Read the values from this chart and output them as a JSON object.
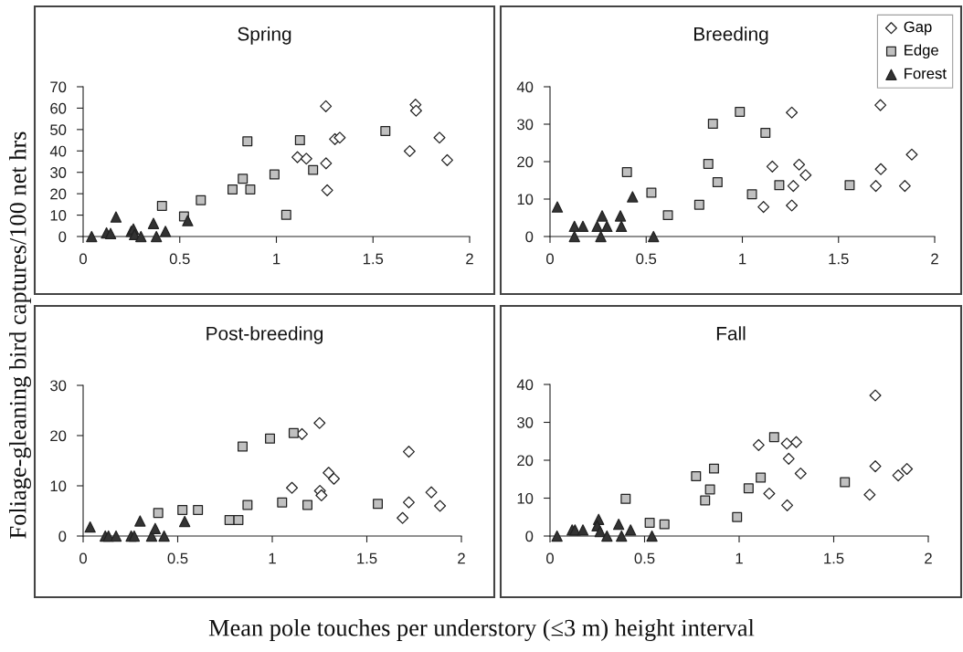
{
  "chart_data": [
    {
      "type": "scatter",
      "title": "Spring",
      "ylabel": "Foliage-gleaning bird captures/100 net hrs",
      "xlabel": "Mean pole touches per understory (≤3 m) height interval",
      "xlim": [
        0,
        2
      ],
      "xticks": [
        0,
        0.5,
        1,
        1.5,
        2
      ],
      "ylim": [
        0,
        70
      ],
      "yticks": [
        0,
        10,
        20,
        30,
        40,
        50,
        60,
        70
      ],
      "grid": false,
      "series": [
        {
          "color": "#ffffff",
          "marker": "diamond",
          "x": [
            1.256,
            1.72,
            1.723,
            1.303,
            1.328,
            1.109,
            1.155,
            1.257,
            1.263,
            1.69,
            1.844,
            1.884
          ],
          "values": [
            60.9,
            61.6,
            58.8,
            45.5,
            46.2,
            37.1,
            36.4,
            34.2,
            21.6,
            39.9,
            46.2,
            35.7
          ]
        },
        {
          "color": "#c0c0c0",
          "marker": "square",
          "x": [
            0.408,
            0.522,
            0.609,
            0.773,
            0.826,
            0.85,
            0.865,
            0.99,
            1.122,
            1.051,
            1.19,
            1.564
          ],
          "values": [
            14.3,
            9.4,
            17.0,
            22.0,
            27.0,
            44.5,
            22.0,
            29.0,
            45.0,
            10.1,
            31.1,
            49.3
          ]
        },
        {
          "color": "#333333",
          "marker": "triangle",
          "x": [
            0.044,
            0.121,
            0.142,
            0.17,
            0.249,
            0.26,
            0.266,
            0.299,
            0.364,
            0.379,
            0.426,
            0.541
          ],
          "values": [
            0,
            1.7,
            1.4,
            9.1,
            2.4,
            3.5,
            0.9,
            0,
            6.1,
            0,
            2.4,
            7.4
          ]
        }
      ]
    },
    {
      "type": "scatter",
      "title": "Breeding",
      "xlim": [
        0,
        2
      ],
      "xticks": [
        0,
        0.5,
        1,
        1.5,
        2
      ],
      "ylim": [
        0,
        40
      ],
      "yticks": [
        0,
        10,
        20,
        30,
        40
      ],
      "grid": false,
      "legend": "top right",
      "series": [
        {
          "name": "Gap",
          "color": "#ffffff",
          "marker": "diamond",
          "x": [
            1.257,
            1.718,
            1.156,
            1.295,
            1.329,
            1.265,
            1.11,
            1.257,
            1.72,
            1.694,
            1.845,
            1.881
          ],
          "values": [
            33.1,
            35.1,
            18.7,
            19.2,
            16.4,
            13.5,
            7.9,
            8.3,
            18.0,
            13.5,
            13.5,
            21.9
          ]
        },
        {
          "name": "Edge",
          "color": "#c0c0c0",
          "marker": "square",
          "x": [
            0.4,
            0.527,
            0.613,
            0.776,
            0.823,
            0.847,
            0.871,
            0.987,
            1.12,
            1.05,
            1.192,
            1.558
          ],
          "values": [
            17.2,
            11.7,
            5.7,
            8.5,
            19.4,
            30.1,
            14.5,
            33.3,
            27.7,
            11.3,
            13.7,
            13.7
          ]
        },
        {
          "name": "Forest",
          "color": "#333333",
          "marker": "triangle",
          "x": [
            0.038,
            0.127,
            0.127,
            0.171,
            0.245,
            0.271,
            0.264,
            0.296,
            0.366,
            0.371,
            0.429,
            0.538
          ],
          "values": [
            7.9,
            2.7,
            0,
            2.7,
            2.7,
            5.5,
            0,
            2.7,
            5.5,
            2.7,
            10.6,
            0
          ]
        }
      ]
    },
    {
      "type": "scatter",
      "title": "Post-breeding",
      "xlim": [
        0,
        2
      ],
      "xticks": [
        0,
        0.5,
        1,
        1.5,
        2
      ],
      "ylim": [
        0,
        30
      ],
      "yticks": [
        0,
        10,
        20,
        30
      ],
      "grid": false,
      "series": [
        {
          "color": "#ffffff",
          "marker": "diamond",
          "x": [
            1.25,
            1.157,
            1.722,
            1.298,
            1.326,
            1.104,
            1.252,
            1.26,
            1.841,
            1.722,
            1.887,
            1.689
          ],
          "values": [
            22.5,
            20.3,
            16.8,
            12.6,
            11.4,
            9.6,
            9.0,
            8.1,
            8.7,
            6.7,
            6.0,
            3.6
          ]
        },
        {
          "color": "#c0c0c0",
          "marker": "square",
          "x": [
            0.397,
            0.525,
            0.607,
            0.774,
            0.821,
            0.843,
            0.869,
            0.988,
            1.113,
            1.052,
            1.186,
            1.558
          ],
          "values": [
            4.6,
            5.2,
            5.2,
            3.2,
            3.2,
            17.8,
            6.2,
            19.4,
            20.5,
            6.7,
            6.2,
            6.4
          ]
        },
        {
          "color": "#333333",
          "marker": "triangle",
          "x": [
            0.037,
            0.117,
            0.134,
            0.174,
            0.254,
            0.27,
            0.301,
            0.362,
            0.381,
            0.428,
            0.537
          ],
          "values": [
            1.8,
            0,
            0,
            0,
            0,
            0,
            3.0,
            0,
            1.5,
            0,
            2.9
          ]
        }
      ]
    },
    {
      "type": "scatter",
      "title": "Fall",
      "xlim": [
        0,
        2
      ],
      "xticks": [
        0,
        0.5,
        1,
        1.5,
        2
      ],
      "ylim": [
        0,
        40
      ],
      "yticks": [
        0,
        10,
        20,
        30,
        40
      ],
      "grid": false,
      "series": [
        {
          "color": "#ffffff",
          "marker": "diamond",
          "x": [
            1.72,
            1.103,
            1.252,
            1.302,
            1.262,
            1.325,
            1.159,
            1.254,
            1.72,
            1.841,
            1.887,
            1.69
          ],
          "values": [
            37.1,
            24.0,
            24.4,
            24.8,
            20.4,
            16.5,
            11.2,
            8.1,
            18.4,
            16.0,
            17.7,
            10.9
          ]
        },
        {
          "color": "#c0c0c0",
          "marker": "square",
          "x": [
            0.4,
            0.527,
            0.605,
            0.772,
            0.82,
            0.846,
            0.867,
            0.989,
            1.05,
            1.114,
            1.185,
            1.559
          ],
          "values": [
            9.8,
            3.5,
            3.1,
            15.8,
            9.4,
            12.3,
            17.8,
            5.0,
            12.6,
            15.4,
            26.1,
            14.2
          ]
        },
        {
          "color": "#333333",
          "marker": "triangle",
          "x": [
            0.037,
            0.117,
            0.132,
            0.174,
            0.257,
            0.249,
            0.265,
            0.301,
            0.363,
            0.378,
            0.426,
            0.539
          ],
          "values": [
            0,
            1.6,
            1.6,
            1.6,
            4.4,
            2.7,
            1.2,
            0,
            3.1,
            0,
            1.6,
            0
          ]
        }
      ]
    }
  ]
}
